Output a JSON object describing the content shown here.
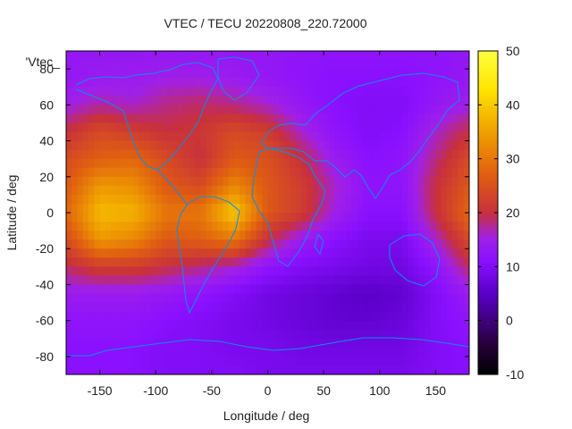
{
  "chart_data": {
    "type": "heatmap",
    "title": "VTEC / TECU 20220808_220.72000",
    "xlabel": "Longitude / deg",
    "ylabel": "Latitude / deg",
    "legend_entry": "'Vtec_",
    "xlim": [
      -180,
      180
    ],
    "ylim": [
      -90,
      90
    ],
    "xticks": [
      -150,
      -100,
      -50,
      0,
      50,
      100,
      150
    ],
    "yticks": [
      -80,
      -60,
      -40,
      -20,
      0,
      20,
      40,
      60,
      80
    ],
    "colorbar": {
      "range": [
        -10,
        50
      ],
      "ticks": [
        -10,
        0,
        10,
        20,
        30,
        40,
        50
      ]
    },
    "colors": {
      "coastline": "#0a8ee8",
      "palette": [
        "#000000",
        "#2a0040",
        "#5a00c8",
        "#8a10ff",
        "#a020e8",
        "#c8303c",
        "#e06010",
        "#f0a000",
        "#ffe400",
        "#ffff40"
      ]
    },
    "vtec_grid": {
      "lon": [
        -180,
        -150,
        -120,
        -90,
        -60,
        -30,
        0,
        30,
        60,
        90,
        120,
        150,
        180
      ],
      "lat": [
        90,
        75,
        60,
        45,
        30,
        15,
        0,
        -15,
        -30,
        -45,
        -60,
        -75,
        -90
      ],
      "values": [
        [
          13,
          13,
          13,
          13,
          13,
          13,
          13,
          12,
          12,
          12,
          12,
          12,
          13
        ],
        [
          13,
          14,
          14,
          15,
          15,
          14,
          13,
          12,
          11,
          11,
          11,
          12,
          13
        ],
        [
          15,
          17,
          16,
          18,
          19,
          18,
          16,
          13,
          11,
          10,
          10,
          13,
          15
        ],
        [
          20,
          24,
          22,
          20,
          21,
          24,
          22,
          16,
          12,
          10,
          11,
          16,
          20
        ],
        [
          24,
          27,
          28,
          24,
          20,
          26,
          25,
          20,
          14,
          11,
          12,
          18,
          24
        ],
        [
          26,
          34,
          33,
          26,
          24,
          32,
          26,
          22,
          16,
          12,
          12,
          20,
          26
        ],
        [
          28,
          38,
          37,
          30,
          30,
          40,
          26,
          22,
          15,
          11,
          11,
          20,
          28
        ],
        [
          24,
          34,
          32,
          26,
          27,
          30,
          20,
          14,
          11,
          9,
          9,
          16,
          24
        ],
        [
          19,
          22,
          22,
          20,
          18,
          16,
          12,
          10,
          9,
          8,
          8,
          12,
          19
        ],
        [
          14,
          14,
          14,
          13,
          12,
          10,
          8,
          7,
          6,
          5,
          6,
          10,
          14
        ],
        [
          12,
          12,
          12,
          11,
          10,
          9,
          8,
          7,
          6,
          6,
          7,
          10,
          12
        ],
        [
          11,
          11,
          11,
          10,
          10,
          9,
          9,
          8,
          8,
          8,
          8,
          10,
          11
        ],
        [
          11,
          11,
          11,
          10,
          10,
          10,
          9,
          9,
          9,
          9,
          9,
          10,
          11
        ]
      ]
    }
  }
}
